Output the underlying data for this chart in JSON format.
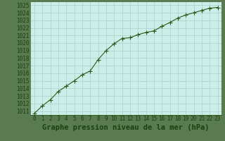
{
  "x": [
    0,
    1,
    2,
    3,
    4,
    5,
    6,
    7,
    8,
    9,
    10,
    11,
    12,
    13,
    14,
    15,
    16,
    17,
    18,
    19,
    20,
    21,
    22,
    23
  ],
  "y": [
    1010.7,
    1011.7,
    1012.5,
    1013.6,
    1014.3,
    1015.0,
    1015.8,
    1016.3,
    1017.8,
    1019.0,
    1019.9,
    1020.6,
    1020.7,
    1021.1,
    1021.4,
    1021.6,
    1022.2,
    1022.7,
    1023.3,
    1023.7,
    1024.0,
    1024.3,
    1024.6,
    1024.7
  ],
  "ylim_min": 1010.5,
  "ylim_max": 1025.4,
  "xlim_min": -0.5,
  "xlim_max": 23.5,
  "yticks": [
    1011,
    1012,
    1013,
    1014,
    1015,
    1016,
    1017,
    1018,
    1019,
    1020,
    1021,
    1022,
    1023,
    1024,
    1025
  ],
  "xticks": [
    0,
    1,
    2,
    3,
    4,
    5,
    6,
    7,
    8,
    9,
    10,
    11,
    12,
    13,
    14,
    15,
    16,
    17,
    18,
    19,
    20,
    21,
    22,
    23
  ],
  "line_color": "#2d5a1b",
  "marker_color": "#2d5a1b",
  "bg_color": "#cceee8",
  "grid_color": "#a8cfc8",
  "xlabel": "Graphe pression niveau de la mer (hPa)",
  "xlabel_color": "#1a4010",
  "tick_color": "#1a4010",
  "tick_fontsize": 5.5,
  "xlabel_fontsize": 7.5,
  "marker_size": 2.5,
  "line_width": 0.8,
  "outer_bg": "#5a7a50"
}
